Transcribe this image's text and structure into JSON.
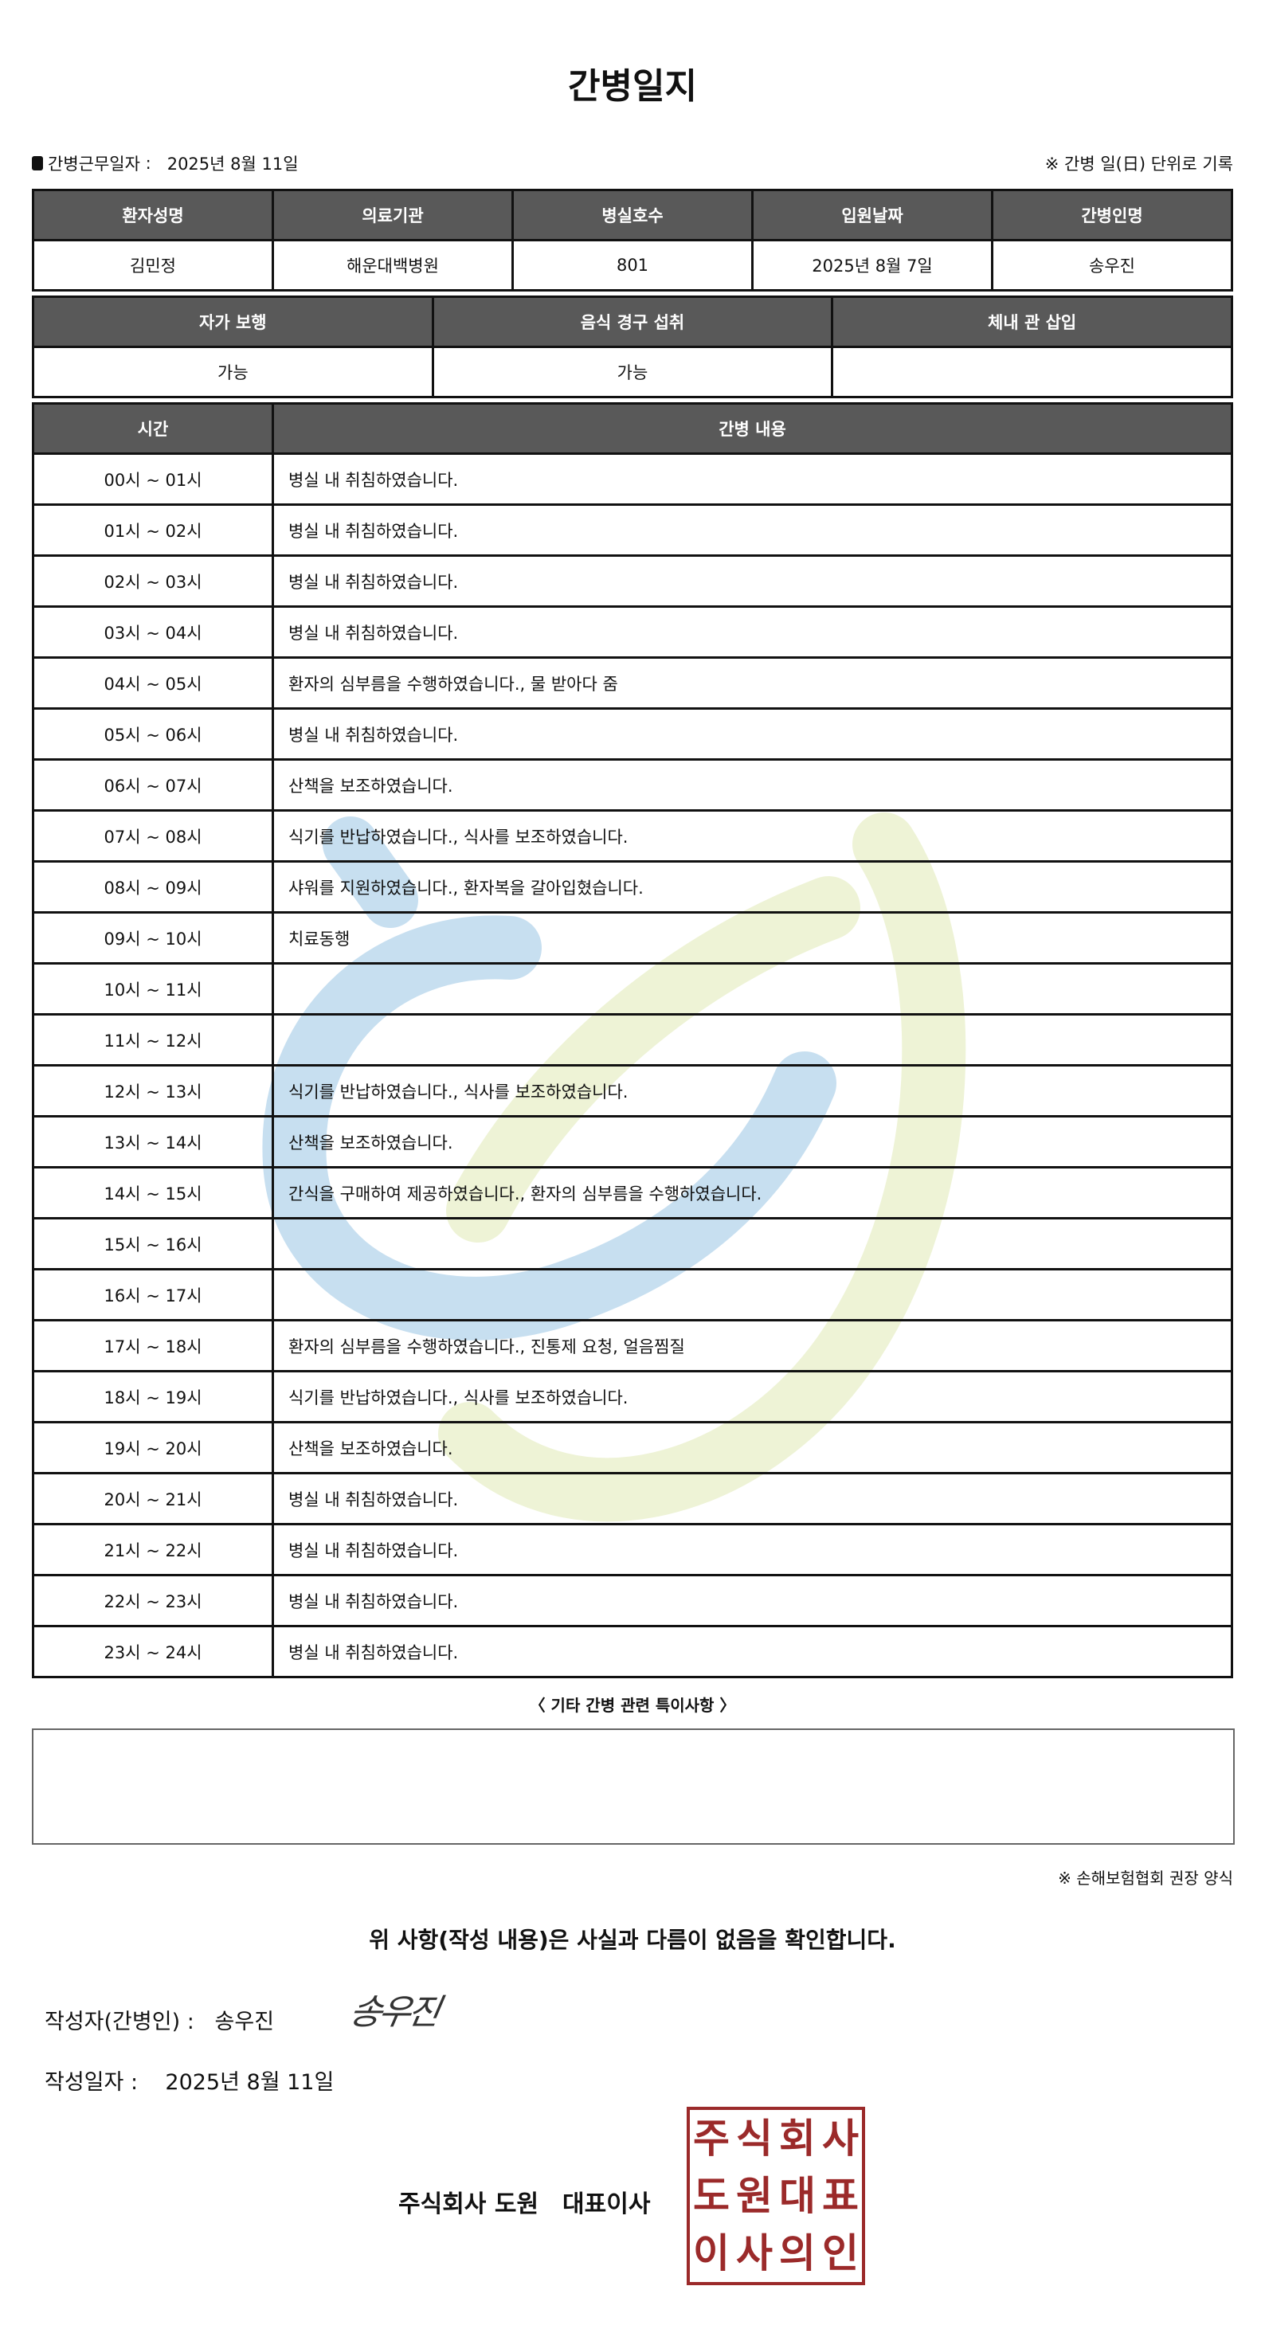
{
  "title": "간병일지",
  "work_date_label": "간병근무일자",
  "work_date": "2025년 8월 11일",
  "unit_note": "※ 간병 일(日) 단위로 기록",
  "patient_table": {
    "headers": [
      "환자성명",
      "의료기관",
      "병실호수",
      "입원날짜",
      "간병인명"
    ],
    "values": [
      "김민정",
      "해운대백병원",
      "801",
      "2025년 8월 7일",
      "송우진"
    ]
  },
  "status_table": {
    "headers": [
      "자가 보행",
      "음식 경구 섭취",
      "체내 관 삽입"
    ],
    "values": [
      "가능",
      "가능",
      ""
    ]
  },
  "log_table": {
    "headers": [
      "시간",
      "간병 내용"
    ],
    "rows": [
      {
        "time": "00시 ~ 01시",
        "content": "병실 내 취침하였습니다."
      },
      {
        "time": "01시 ~ 02시",
        "content": "병실 내 취침하였습니다."
      },
      {
        "time": "02시 ~ 03시",
        "content": "병실 내 취침하였습니다."
      },
      {
        "time": "03시 ~ 04시",
        "content": "병실 내 취침하였습니다."
      },
      {
        "time": "04시 ~ 05시",
        "content": "환자의 심부름을 수행하였습니다., 물 받아다 줌"
      },
      {
        "time": "05시 ~ 06시",
        "content": "병실 내 취침하였습니다."
      },
      {
        "time": "06시 ~ 07시",
        "content": "산책을 보조하였습니다."
      },
      {
        "time": "07시 ~ 08시",
        "content": "식기를 반납하였습니다., 식사를 보조하였습니다."
      },
      {
        "time": "08시 ~ 09시",
        "content": "샤워를 지원하였습니다., 환자복을 갈아입혔습니다."
      },
      {
        "time": "09시 ~ 10시",
        "content": "치료동행"
      },
      {
        "time": "10시 ~ 11시",
        "content": ""
      },
      {
        "time": "11시 ~ 12시",
        "content": ""
      },
      {
        "time": "12시 ~ 13시",
        "content": "식기를 반납하였습니다., 식사를 보조하였습니다."
      },
      {
        "time": "13시 ~ 14시",
        "content": "산책을 보조하였습니다."
      },
      {
        "time": "14시 ~ 15시",
        "content": "간식을 구매하여 제공하였습니다., 환자의 심부름을 수행하였습니다."
      },
      {
        "time": "15시 ~ 16시",
        "content": ""
      },
      {
        "time": "16시 ~ 17시",
        "content": ""
      },
      {
        "time": "17시 ~ 18시",
        "content": "환자의 심부름을 수행하였습니다., 진통제 요청, 얼음찜질"
      },
      {
        "time": "18시 ~ 19시",
        "content": "식기를 반납하였습니다., 식사를 보조하였습니다."
      },
      {
        "time": "19시 ~ 20시",
        "content": "산책을 보조하였습니다."
      },
      {
        "time": "20시 ~ 21시",
        "content": "병실 내 취침하였습니다."
      },
      {
        "time": "21시 ~ 22시",
        "content": "병실 내 취침하였습니다."
      },
      {
        "time": "22시 ~ 23시",
        "content": "병실 내 취침하였습니다."
      },
      {
        "time": "23시 ~ 24시",
        "content": "병실 내 취침하였습니다."
      }
    ]
  },
  "notes_label": "〈 기타 간병 관련 특이사항 〉",
  "notes": "",
  "form_note": "※ 손해보험협회 권장 양식",
  "confirm_statement": "위 사항(작성 내용)은 사실과 다름이 없음을 확인합니다.",
  "writer_label": "작성자(간병인) :",
  "writer_name": "송우진",
  "signature": "송우진",
  "write_date_label": "작성일자 :",
  "write_date": "2025년 8월 11일",
  "company": "주식회사 도원　대표이사",
  "stamp_text": [
    "주",
    "식",
    "회",
    "사",
    "도",
    "원",
    "대",
    "표",
    "이",
    "사",
    "의",
    "인"
  ],
  "colors": {
    "header_bg": "#595959",
    "stamp": "#9b2a2a",
    "watermark_blue": "#c7dff0",
    "watermark_yellow": "#eef3d6"
  }
}
